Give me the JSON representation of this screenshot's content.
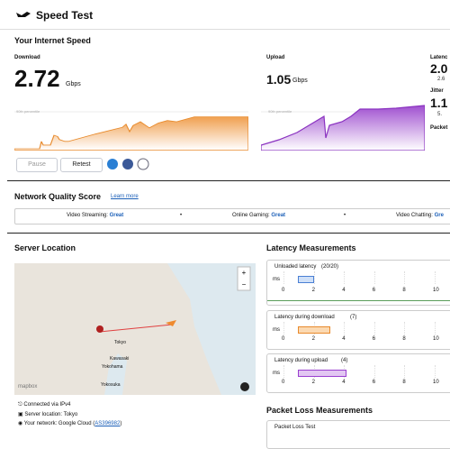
{
  "header": {
    "title": "Speed Test"
  },
  "speed": {
    "title": "Your Internet Speed",
    "download": {
      "label": "Download",
      "value": "2.72",
      "unit": "Gbps",
      "percentile": "90th percentile"
    },
    "upload": {
      "label": "Upload",
      "value": "1.05",
      "unit": "Gbps",
      "percentile": "90th percentile"
    },
    "latency": {
      "label": "Latenc",
      "value": "2.0",
      "sub": "2.6"
    },
    "jitter": {
      "label": "Jitter",
      "value": "1.1",
      "sub": "5."
    },
    "packet": {
      "label": "Packet"
    },
    "buttons": {
      "pause": "Pause",
      "retest": "Retest"
    }
  },
  "quality": {
    "title": "Network Quality Score",
    "link": "Learn more",
    "items": [
      {
        "label": "Video Streaming:",
        "value": "Great"
      },
      {
        "label": "Online Gaming:",
        "value": "Great"
      },
      {
        "label": "Video Chatting:",
        "value": "Gre"
      }
    ]
  },
  "server": {
    "title": "Server Location",
    "map_labels": [
      "Tokyo",
      "Kawasaki",
      "Yokohama",
      "Yokosuka"
    ],
    "map_brand": "mapbox",
    "info": {
      "connection": "Connected via IPv4",
      "location": "Server location: Tokyo",
      "network": "Your network: Google Cloud (",
      "asn": "AS396982",
      "close": ")"
    }
  },
  "latency": {
    "title": "Latency Measurements",
    "unit": "ms",
    "ticks": [
      "0",
      "2",
      "4",
      "6",
      "8",
      "10"
    ],
    "panels": [
      {
        "title": "Unloaded latency",
        "count": "(20/20)"
      },
      {
        "title": "Latency during download",
        "count": "(7)"
      },
      {
        "title": "Latency during upload",
        "count": "(4)"
      }
    ]
  },
  "packet_loss": {
    "title": "Packet Loss Measurements",
    "panel": "Packet Loss Test"
  }
}
